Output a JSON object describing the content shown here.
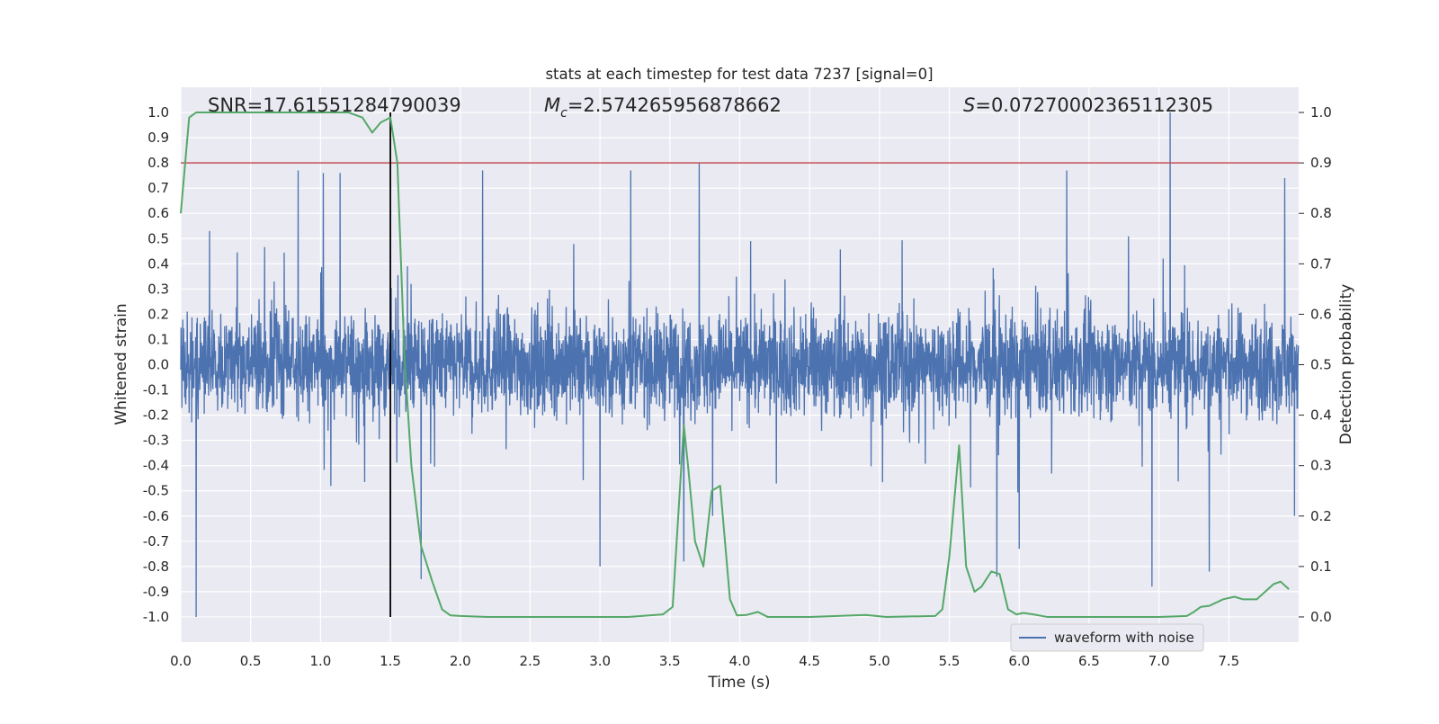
{
  "chart_data": {
    "type": "line",
    "title": "stats at each timestep for test data 7237 [signal=0]",
    "xlabel": "Time (s)",
    "ylabel": "Whitened strain",
    "y2label": "Detection probability",
    "xlim": [
      0.0,
      8.0
    ],
    "ylim": [
      -1.1,
      1.1
    ],
    "y2lim": [
      -0.05,
      1.05
    ],
    "x_ticks": [
      0.0,
      0.5,
      1.0,
      1.5,
      2.0,
      2.5,
      3.0,
      3.5,
      4.0,
      4.5,
      5.0,
      5.5,
      6.0,
      6.5,
      7.0,
      7.5
    ],
    "y_ticks": [
      -1.0,
      -0.9,
      -0.8,
      -0.7,
      -0.6,
      -0.5,
      -0.4,
      -0.3,
      -0.2,
      -0.1,
      0.0,
      0.1,
      0.2,
      0.3,
      0.4,
      0.5,
      0.6,
      0.7,
      0.8,
      0.9,
      1.0
    ],
    "y2_ticks": [
      0.0,
      0.1,
      0.2,
      0.3,
      0.4,
      0.5,
      0.6,
      0.7,
      0.8,
      0.9,
      1.0
    ],
    "grid": true,
    "annotations": {
      "snr": "SNR=17.61551284790039",
      "mc_symbol": "M",
      "mc_sub": "c",
      "mc_value": "=2.574265956878662",
      "s_symbol": "S",
      "s_value": "=0.07270002365112305"
    },
    "threshold": {
      "y2": 0.9,
      "color": "#c44e52"
    },
    "vertical_marker": {
      "x": 1.5,
      "ymin": -1.0,
      "ymax": 1.0,
      "color": "#000000"
    },
    "waveform": {
      "name": "waveform with noise",
      "color": "#4c72b0",
      "duration": 8.0,
      "samples": 4000,
      "peaks": [
        {
          "x": 0.11,
          "y": -1.0
        },
        {
          "x": 0.84,
          "y": 0.77
        },
        {
          "x": 1.02,
          "y": 0.76
        },
        {
          "x": 1.14,
          "y": 0.76
        },
        {
          "x": 1.72,
          "y": -0.85
        },
        {
          "x": 2.16,
          "y": 0.77
        },
        {
          "x": 3.0,
          "y": -0.8
        },
        {
          "x": 3.22,
          "y": 0.77
        },
        {
          "x": 3.6,
          "y": -0.78
        },
        {
          "x": 3.71,
          "y": 0.8
        },
        {
          "x": 5.84,
          "y": -0.84
        },
        {
          "x": 6.0,
          "y": -0.73
        },
        {
          "x": 6.34,
          "y": 0.77
        },
        {
          "x": 6.95,
          "y": -0.88
        },
        {
          "x": 7.08,
          "y": 1.0
        },
        {
          "x": 7.36,
          "y": -0.82
        },
        {
          "x": 7.9,
          "y": 0.74
        }
      ]
    },
    "detection_probability": {
      "name": "detection probability",
      "color": "#55a868",
      "x": [
        0.0,
        0.06,
        0.11,
        0.2,
        0.5,
        1.0,
        1.2,
        1.3,
        1.37,
        1.43,
        1.5,
        1.55,
        1.6,
        1.65,
        1.72,
        1.8,
        1.87,
        1.93,
        2.0,
        2.2,
        2.5,
        3.0,
        3.2,
        3.45,
        3.52,
        3.6,
        3.63,
        3.68,
        3.74,
        3.8,
        3.86,
        3.93,
        3.98,
        4.05,
        4.13,
        4.2,
        4.5,
        4.9,
        5.05,
        5.4,
        5.45,
        5.5,
        5.57,
        5.62,
        5.68,
        5.73,
        5.8,
        5.86,
        5.92,
        5.98,
        6.03,
        6.1,
        6.2,
        6.5,
        7.0,
        7.2,
        7.25,
        7.3,
        7.36,
        7.46,
        7.54,
        7.6,
        7.7,
        7.78,
        7.82,
        7.87,
        7.93
      ],
      "y": [
        0.8,
        0.99,
        1.0,
        1.0,
        1.0,
        1.0,
        1.0,
        0.99,
        0.96,
        0.98,
        0.99,
        0.9,
        0.52,
        0.3,
        0.14,
        0.07,
        0.015,
        0.003,
        0.002,
        0.0,
        0.0,
        0.0,
        0.0,
        0.005,
        0.02,
        0.38,
        0.3,
        0.15,
        0.1,
        0.25,
        0.26,
        0.035,
        0.003,
        0.004,
        0.01,
        0.0,
        0.0,
        0.004,
        0.0,
        0.002,
        0.015,
        0.12,
        0.34,
        0.1,
        0.05,
        0.06,
        0.09,
        0.085,
        0.015,
        0.005,
        0.008,
        0.005,
        0.0,
        0.0,
        0.0,
        0.002,
        0.01,
        0.02,
        0.022,
        0.035,
        0.04,
        0.035,
        0.035,
        0.055,
        0.065,
        0.07,
        0.055
      ]
    },
    "legend": {
      "entries": [
        "waveform with noise"
      ],
      "placement": "lower-right"
    }
  }
}
